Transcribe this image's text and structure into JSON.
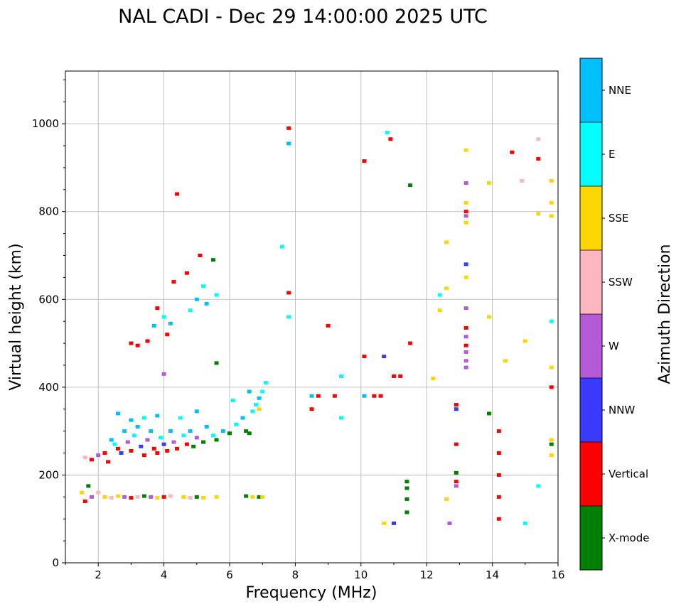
{
  "chart_data": {
    "type": "scatter",
    "title": "NAL CADI - Dec 29 14:00:00 2025 UTC",
    "xlabel": "Frequency (MHz)",
    "ylabel": "Virtual height (km)",
    "xlim": [
      1,
      16
    ],
    "ylim": [
      0,
      1120
    ],
    "xticks": [
      2,
      4,
      6,
      8,
      10,
      12,
      14,
      16
    ],
    "yticks": [
      0,
      200,
      400,
      600,
      800,
      1000
    ],
    "grid": true,
    "colorbar": {
      "label": "Azimuth Direction",
      "categories": [
        {
          "name": "X-mode",
          "color": "#008000"
        },
        {
          "name": "Vertical",
          "color": "#ff0000"
        },
        {
          "name": "NNW",
          "color": "#3a3aff"
        },
        {
          "name": "W",
          "color": "#b45ad6"
        },
        {
          "name": "SSW",
          "color": "#ffb6c1"
        },
        {
          "name": "SSE",
          "color": "#ffd700"
        },
        {
          "name": "E",
          "color": "#00ffff"
        },
        {
          "name": "NNE",
          "color": "#00bfff"
        }
      ]
    },
    "series": [
      {
        "name": "F-layer trace",
        "points": [
          [
            1.6,
            240,
            "SSW"
          ],
          [
            1.8,
            235,
            "Vertical"
          ],
          [
            2.0,
            245,
            "W"
          ],
          [
            2.2,
            250,
            "Vertical"
          ],
          [
            2.3,
            230,
            "Vertical"
          ],
          [
            2.4,
            280,
            "NNE"
          ],
          [
            2.5,
            270,
            "E"
          ],
          [
            2.6,
            260,
            "Vertical"
          ],
          [
            2.7,
            250,
            "NNW"
          ],
          [
            2.8,
            300,
            "NNE"
          ],
          [
            2.9,
            275,
            "W"
          ],
          [
            3.0,
            255,
            "Vertical"
          ],
          [
            3.1,
            290,
            "E"
          ],
          [
            3.2,
            310,
            "NNE"
          ],
          [
            3.3,
            265,
            "NNW"
          ],
          [
            3.4,
            245,
            "Vertical"
          ],
          [
            3.5,
            280,
            "W"
          ],
          [
            3.6,
            300,
            "NNE"
          ],
          [
            3.7,
            260,
            "Vertical"
          ],
          [
            3.8,
            250,
            "Vertical"
          ],
          [
            3.9,
            285,
            "E"
          ],
          [
            4.0,
            270,
            "NNW"
          ],
          [
            4.1,
            255,
            "Vertical"
          ],
          [
            4.2,
            300,
            "NNE"
          ],
          [
            4.3,
            275,
            "W"
          ],
          [
            4.4,
            260,
            "Vertical"
          ],
          [
            4.6,
            290,
            "E"
          ],
          [
            4.7,
            270,
            "Vertical"
          ],
          [
            4.8,
            300,
            "NNE"
          ],
          [
            4.9,
            265,
            "X-mode"
          ],
          [
            5.0,
            285,
            "W"
          ],
          [
            5.2,
            275,
            "X-mode"
          ],
          [
            5.3,
            310,
            "NNE"
          ],
          [
            5.5,
            290,
            "E"
          ],
          [
            5.6,
            280,
            "X-mode"
          ],
          [
            5.8,
            300,
            "NNE"
          ],
          [
            6.0,
            295,
            "X-mode"
          ],
          [
            6.2,
            315,
            "E"
          ],
          [
            6.4,
            330,
            "NNE"
          ],
          [
            6.5,
            300,
            "X-mode"
          ],
          [
            6.6,
            295,
            "X-mode"
          ],
          [
            6.7,
            345,
            "E"
          ],
          [
            6.8,
            360,
            "E"
          ],
          [
            6.9,
            375,
            "NNE"
          ],
          [
            7.0,
            390,
            "E"
          ],
          [
            7.1,
            410,
            "E"
          ],
          [
            2.6,
            340,
            "NNE"
          ],
          [
            3.0,
            325,
            "NNE"
          ],
          [
            3.4,
            330,
            "E"
          ],
          [
            3.8,
            335,
            "NNE"
          ],
          [
            4.5,
            330,
            "E"
          ],
          [
            5.0,
            345,
            "NNE"
          ],
          [
            6.1,
            370,
            "E"
          ],
          [
            6.6,
            390,
            "NNE"
          ],
          [
            6.9,
            350,
            "SSE"
          ]
        ]
      },
      {
        "name": "Upper scatter",
        "points": [
          [
            3.0,
            500,
            "Vertical"
          ],
          [
            3.2,
            495,
            "Vertical"
          ],
          [
            3.5,
            505,
            "Vertical"
          ],
          [
            3.7,
            540,
            "NNE"
          ],
          [
            3.8,
            580,
            "Vertical"
          ],
          [
            4.0,
            560,
            "E"
          ],
          [
            4.1,
            520,
            "Vertical"
          ],
          [
            4.2,
            545,
            "NNE"
          ],
          [
            4.3,
            640,
            "Vertical"
          ],
          [
            4.4,
            840,
            "Vertical"
          ],
          [
            4.7,
            660,
            "Vertical"
          ],
          [
            4.8,
            575,
            "E"
          ],
          [
            5.0,
            600,
            "NNE"
          ],
          [
            5.1,
            700,
            "Vertical"
          ],
          [
            5.2,
            630,
            "E"
          ],
          [
            5.3,
            590,
            "NNE"
          ],
          [
            5.5,
            690,
            "X-mode"
          ],
          [
            5.6,
            610,
            "E"
          ],
          [
            4.0,
            430,
            "W"
          ],
          [
            5.6,
            455,
            "X-mode"
          ],
          [
            7.8,
            990,
            "Vertical"
          ],
          [
            7.8,
            955,
            "NNE"
          ],
          [
            7.6,
            720,
            "E"
          ],
          [
            7.8,
            615,
            "Vertical"
          ],
          [
            7.8,
            560,
            "E"
          ]
        ]
      },
      {
        "name": "E-layer trace",
        "points": [
          [
            1.5,
            160,
            "SSE"
          ],
          [
            1.6,
            140,
            "Vertical"
          ],
          [
            1.7,
            175,
            "X-mode"
          ],
          [
            1.8,
            150,
            "W"
          ],
          [
            2.0,
            160,
            "SSW"
          ],
          [
            2.2,
            150,
            "SSE"
          ],
          [
            2.4,
            148,
            "SSW"
          ],
          [
            2.6,
            152,
            "SSE"
          ],
          [
            2.8,
            150,
            "W"
          ],
          [
            3.0,
            148,
            "Vertical"
          ],
          [
            3.2,
            150,
            "SSW"
          ],
          [
            3.4,
            152,
            "X-mode"
          ],
          [
            3.6,
            150,
            "W"
          ],
          [
            3.8,
            148,
            "SSE"
          ],
          [
            4.0,
            150,
            "Vertical"
          ],
          [
            4.2,
            152,
            "SSW"
          ],
          [
            4.6,
            150,
            "SSE"
          ],
          [
            4.8,
            148,
            "SSW"
          ],
          [
            5.0,
            150,
            "X-mode"
          ],
          [
            5.2,
            148,
            "SSE"
          ],
          [
            5.6,
            150,
            "SSE"
          ],
          [
            6.5,
            152,
            "X-mode"
          ],
          [
            6.7,
            150,
            "SSE"
          ],
          [
            6.9,
            150,
            "X-mode"
          ],
          [
            7.0,
            150,
            "SSE"
          ]
        ]
      },
      {
        "name": "High-frequency echoes",
        "points": [
          [
            8.5,
            380,
            "NNE"
          ],
          [
            8.5,
            350,
            "Vertical"
          ],
          [
            8.7,
            380,
            "Vertical"
          ],
          [
            9.0,
            540,
            "Vertical"
          ],
          [
            9.2,
            380,
            "Vertical"
          ],
          [
            9.4,
            425,
            "E"
          ],
          [
            9.4,
            330,
            "E"
          ],
          [
            10.1,
            915,
            "Vertical"
          ],
          [
            10.1,
            470,
            "Vertical"
          ],
          [
            10.1,
            380,
            "NNE"
          ],
          [
            10.4,
            380,
            "Vertical"
          ],
          [
            10.6,
            380,
            "Vertical"
          ],
          [
            10.7,
            470,
            "NNW"
          ],
          [
            10.8,
            980,
            "E"
          ],
          [
            10.9,
            965,
            "Vertical"
          ],
          [
            11.0,
            425,
            "Vertical"
          ],
          [
            11.2,
            425,
            "Vertical"
          ],
          [
            11.5,
            500,
            "Vertical"
          ],
          [
            11.5,
            860,
            "X-mode"
          ],
          [
            11.4,
            185,
            "X-mode"
          ],
          [
            11.4,
            115,
            "X-mode"
          ],
          [
            10.7,
            90,
            "SSE"
          ],
          [
            11.0,
            90,
            "NNW"
          ],
          [
            12.2,
            420,
            "SSE"
          ],
          [
            12.4,
            610,
            "E"
          ],
          [
            12.4,
            575,
            "SSE"
          ],
          [
            12.6,
            730,
            "SSE"
          ],
          [
            12.6,
            625,
            "SSE"
          ],
          [
            12.6,
            145,
            "SSE"
          ],
          [
            12.7,
            90,
            "W"
          ],
          [
            13.2,
            940,
            "SSE"
          ],
          [
            13.2,
            865,
            "W"
          ],
          [
            13.2,
            680,
            "NNW"
          ],
          [
            13.2,
            650,
            "SSE"
          ],
          [
            13.9,
            865,
            "SSE"
          ],
          [
            13.9,
            560,
            "SSE"
          ],
          [
            13.9,
            340,
            "X-mode"
          ],
          [
            14.4,
            460,
            "SSE"
          ],
          [
            14.6,
            935,
            "Vertical"
          ],
          [
            14.9,
            870,
            "SSW"
          ],
          [
            15.0,
            505,
            "SSE"
          ],
          [
            15.0,
            90,
            "E"
          ],
          [
            15.4,
            965,
            "SSW"
          ],
          [
            15.4,
            920,
            "Vertical"
          ],
          [
            15.4,
            795,
            "SSE"
          ],
          [
            15.4,
            175,
            "E"
          ],
          [
            15.8,
            870,
            "SSE"
          ],
          [
            15.8,
            820,
            "SSE"
          ],
          [
            15.8,
            790,
            "SSE"
          ],
          [
            15.8,
            550,
            "E"
          ],
          [
            15.8,
            445,
            "SSE"
          ],
          [
            15.8,
            400,
            "Vertical"
          ],
          [
            15.8,
            280,
            "SSE"
          ],
          [
            15.8,
            270,
            "X-mode"
          ],
          [
            15.8,
            245,
            "SSE"
          ]
        ]
      },
      {
        "name": "Stacked columns",
        "points": [
          [
            11.4,
            170,
            "X-mode"
          ],
          [
            11.4,
            145,
            "X-mode"
          ],
          [
            12.9,
            360,
            "Vertical"
          ],
          [
            12.9,
            350,
            "NNW"
          ],
          [
            12.9,
            270,
            "Vertical"
          ],
          [
            12.9,
            205,
            "X-mode"
          ],
          [
            12.9,
            185,
            "Vertical"
          ],
          [
            12.9,
            175,
            "W"
          ],
          [
            13.2,
            820,
            "SSE"
          ],
          [
            13.2,
            800,
            "Vertical"
          ],
          [
            13.2,
            790,
            "W"
          ],
          [
            13.2,
            775,
            "SSE"
          ],
          [
            13.2,
            580,
            "W"
          ],
          [
            13.2,
            535,
            "Vertical"
          ],
          [
            13.2,
            515,
            "W"
          ],
          [
            13.2,
            495,
            "Vertical"
          ],
          [
            13.2,
            480,
            "W"
          ],
          [
            13.2,
            460,
            "W"
          ],
          [
            13.2,
            445,
            "W"
          ],
          [
            14.2,
            300,
            "Vertical"
          ],
          [
            14.2,
            250,
            "Vertical"
          ],
          [
            14.2,
            200,
            "Vertical"
          ],
          [
            14.2,
            150,
            "Vertical"
          ],
          [
            14.2,
            100,
            "Vertical"
          ]
        ]
      }
    ]
  }
}
